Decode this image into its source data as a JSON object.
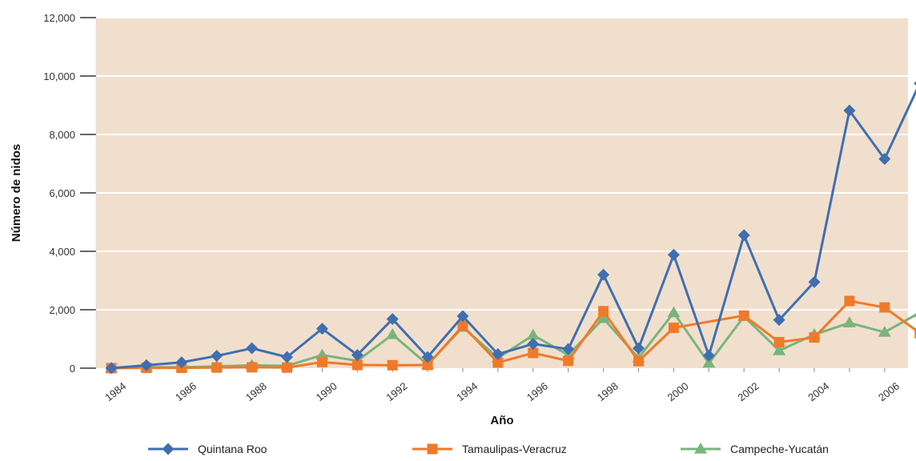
{
  "chart_data": {
    "type": "line",
    "title": "",
    "xlabel": "Año",
    "ylabel": "Número de nidos",
    "x": [
      1984,
      1985,
      1986,
      1987,
      1988,
      1989,
      1990,
      1991,
      1992,
      1993,
      1994,
      1995,
      1996,
      1997,
      1998,
      1999,
      2000,
      2001,
      2002,
      2003,
      2004,
      2005,
      2006,
      2007
    ],
    "x_tick_labels": [
      "1984",
      "1986",
      "1988",
      "1990",
      "1992",
      "1994",
      "1996",
      "1998",
      "2000",
      "2002",
      "2004",
      "2006"
    ],
    "y_tick_labels": [
      "0",
      "2,000",
      "4,000",
      "6,000",
      "8,000",
      "10,000",
      "12,000"
    ],
    "ylim": [
      0,
      12000
    ],
    "grid": true,
    "legend_position": "bottom",
    "background_color": "#f1dfcd",
    "series": [
      {
        "name": "Quintana Roo",
        "color": "#3f6fb0",
        "marker": "diamond",
        "values": [
          0,
          100,
          200,
          420,
          680,
          380,
          1350,
          450,
          1680,
          380,
          1780,
          480,
          830,
          650,
          3200,
          680,
          3880,
          430,
          4550,
          1650,
          2950,
          8820,
          7160,
          9750
        ]
      },
      {
        "name": "Tamaulipas-Veracruz",
        "color": "#ef7a2a",
        "marker": "square",
        "values": [
          0,
          10,
          10,
          20,
          30,
          20,
          210,
          110,
          100,
          110,
          1450,
          190,
          520,
          250,
          1950,
          240,
          1380,
          null,
          1800,
          890,
          1050,
          2300,
          2080,
          1200
        ]
      },
      {
        "name": "Campeche-Yucatán",
        "color": "#79b47b",
        "marker": "triangle",
        "values": [
          0,
          30,
          30,
          60,
          100,
          80,
          450,
          250,
          1150,
          120,
          1400,
          350,
          1130,
          450,
          1700,
          350,
          1900,
          170,
          1770,
          600,
          1150,
          1550,
          1230,
          1900
        ]
      }
    ]
  }
}
